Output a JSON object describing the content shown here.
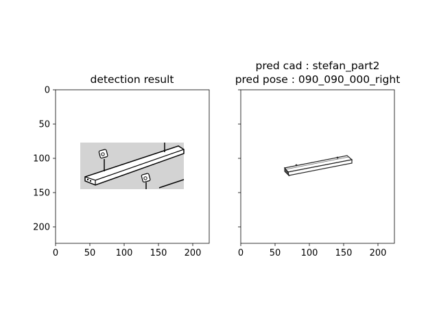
{
  "chart_data": [
    {
      "type": "image",
      "title_lines": [
        "detection result"
      ],
      "xlim": [
        0,
        224
      ],
      "ylim": [
        224,
        0
      ],
      "xticks": [
        0,
        50,
        100,
        150,
        200
      ],
      "yticks": [
        0,
        50,
        100,
        150,
        200
      ],
      "tick_labels_x": [
        "0",
        "50",
        "100",
        "150",
        "200"
      ],
      "tick_labels_y": [
        "0",
        "50",
        "100",
        "150",
        "200"
      ],
      "show_y_labels": true,
      "image_extent": {
        "x": [
          36,
          187
        ],
        "y": [
          77,
          145
        ]
      },
      "image_content": "line drawing of a rectangular wooden board with two screw fasteners on a gray background"
    },
    {
      "type": "image",
      "title_lines": [
        "pred cad : stefan_part2",
        "pred pose : 090_090_000_right"
      ],
      "xlim": [
        0,
        224
      ],
      "ylim": [
        224,
        0
      ],
      "xticks": [
        0,
        50,
        100,
        150,
        200
      ],
      "yticks": [
        0,
        50,
        100,
        150,
        200
      ],
      "tick_labels_x": [
        "0",
        "50",
        "100",
        "150",
        "200"
      ],
      "tick_labels_y": [],
      "show_y_labels": false,
      "image_content": "rendered CAD line drawing of a long thin board"
    }
  ]
}
